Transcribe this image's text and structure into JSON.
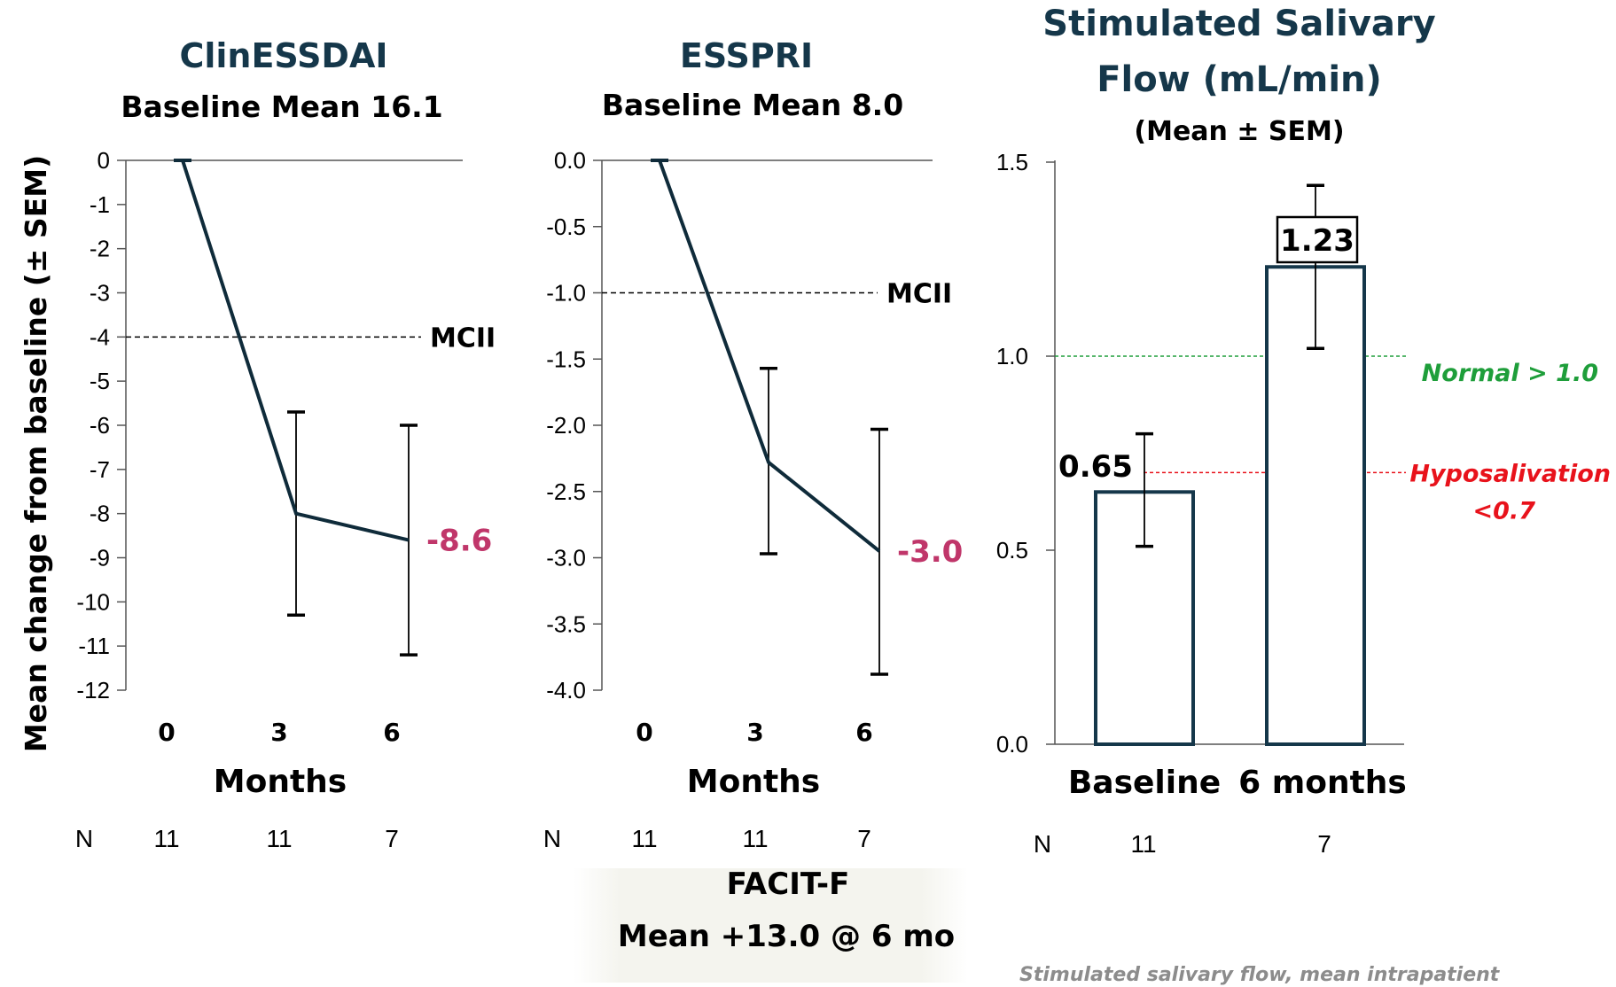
{
  "chart_data": [
    {
      "type": "line",
      "title": "ClinESSDAI",
      "subtitle": "Baseline Mean 16.1",
      "xlabel": "Months",
      "ylabel": "Mean change from baseline (± SEM)",
      "categories": [
        "0",
        "3",
        "6"
      ],
      "x": [
        0,
        3,
        6
      ],
      "values": [
        0,
        -8.0,
        -8.6
      ],
      "error_low": [
        0,
        -10.3,
        -11.2
      ],
      "error_high": [
        0,
        -5.7,
        -6.0
      ],
      "ylim": [
        -12,
        0
      ],
      "yticks": [
        "0",
        "-1",
        "-2",
        "-3",
        "-4",
        "-5",
        "-6",
        "-7",
        "-8",
        "-9",
        "-10",
        "-11",
        "-12"
      ],
      "reference_line": {
        "value": -4,
        "label": "MCII"
      },
      "end_label": "-8.6",
      "n_label": "N",
      "n_values": [
        "11",
        "11",
        "7"
      ]
    },
    {
      "type": "line",
      "title": "ESSPRI",
      "subtitle": "Baseline Mean 8.0",
      "xlabel": "Months",
      "categories": [
        "0",
        "3",
        "6"
      ],
      "x": [
        0,
        3,
        6
      ],
      "values": [
        0.0,
        -2.28,
        -2.95
      ],
      "error_low": [
        0.0,
        -2.97,
        -3.88
      ],
      "error_high": [
        0.0,
        -1.57,
        -2.03
      ],
      "ylim": [
        -4.0,
        0.0
      ],
      "yticks": [
        "0.0",
        "-0.5",
        "-1.0",
        "-1.5",
        "-2.0",
        "-2.5",
        "-3.0",
        "-3.5",
        "-4.0"
      ],
      "reference_line": {
        "value": -1.0,
        "label": "MCII"
      },
      "end_label": "-3.0",
      "n_label": "N",
      "n_values": [
        "11",
        "11",
        "7"
      ],
      "facit": {
        "title": "FACIT-F",
        "subtitle": "Mean +13.0 @ 6 mo"
      }
    },
    {
      "type": "bar",
      "title_line1": "Stimulated Salivary",
      "title_line2": "Flow (mL/min)",
      "subtitle": "(Mean ± SEM)",
      "categories": [
        "Baseline",
        "6 months"
      ],
      "values": [
        0.65,
        1.23
      ],
      "value_labels": [
        "0.65",
        "1.23"
      ],
      "error_low": [
        0.51,
        1.02
      ],
      "error_high": [
        0.8,
        1.44
      ],
      "ylim": [
        0.0,
        1.5
      ],
      "yticks": [
        "0.0",
        "0.5",
        "1.0",
        "1.5"
      ],
      "normal_line": {
        "value": 1.0,
        "label": "Normal > 1.0",
        "color": "#1e9e3a"
      },
      "hypo_line": {
        "value": 0.7,
        "label_line1": "Hyposalivation",
        "label_line2": "<0.7",
        "color": "#e8121b"
      },
      "n_label": "N",
      "n_values": [
        "11",
        "7"
      ],
      "footnote": "Stimulated salivary flow, mean intrapatient"
    }
  ],
  "colors": {
    "navy": "#15374a",
    "dark_line": "#0f2b3a",
    "magenta": "#c0366a",
    "black": "#000000"
  }
}
